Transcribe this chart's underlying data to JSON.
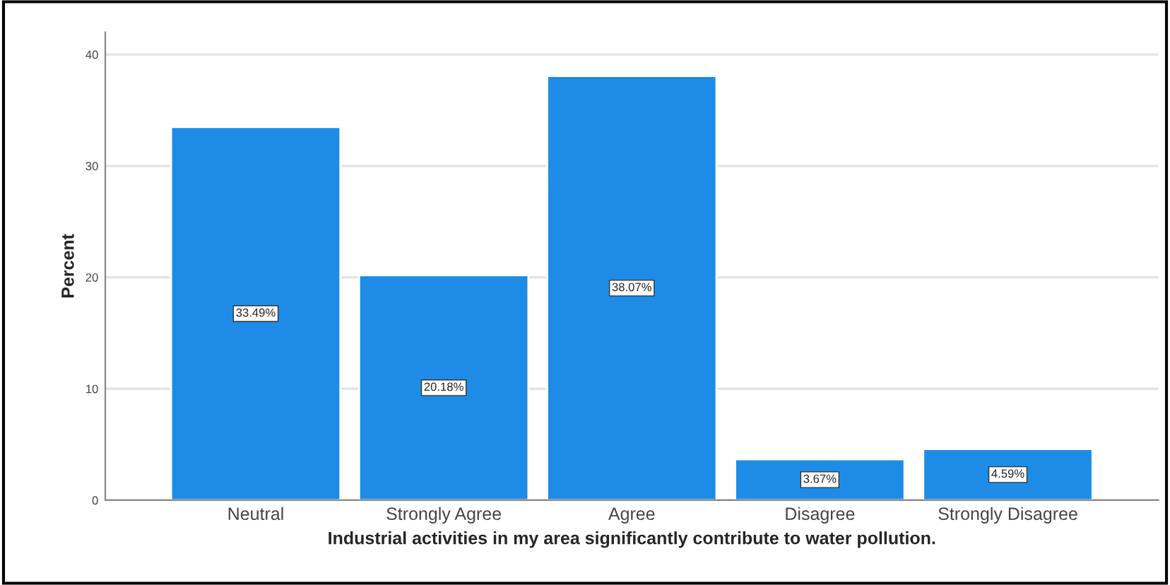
{
  "chart_data": {
    "type": "bar",
    "xlabel": "Industrial activities in my area significantly contribute to water pollution.",
    "ylabel": "Percent",
    "categories": [
      "Neutral",
      "Strongly Agree",
      "Agree",
      "Disagree",
      "Strongly Disagree"
    ],
    "values": [
      33.49,
      20.18,
      38.07,
      3.67,
      4.59
    ],
    "value_labels": [
      "33.49%",
      "20.18%",
      "38.07%",
      "3.67%",
      "4.59%"
    ],
    "color": "#1e8ce6",
    "ylim": [
      0,
      42
    ],
    "yticks": [
      0,
      10,
      20,
      30,
      40
    ],
    "grid": "y"
  }
}
